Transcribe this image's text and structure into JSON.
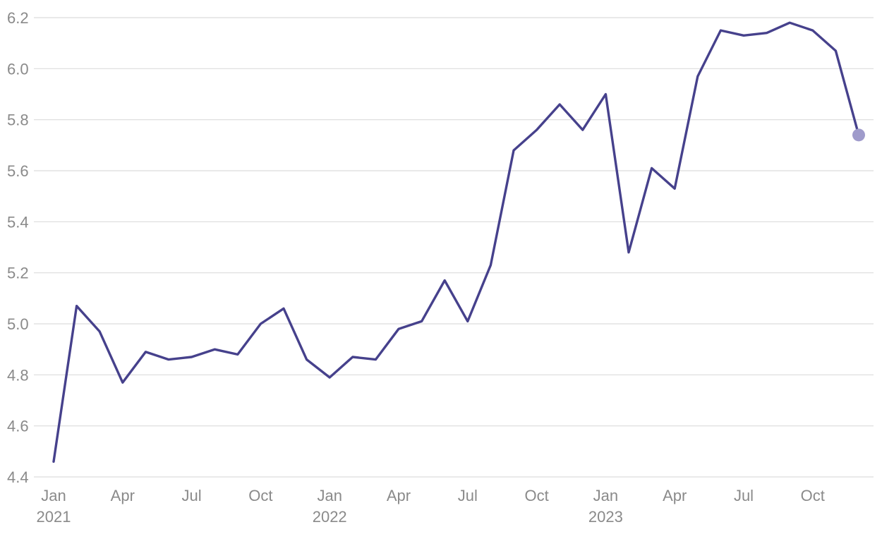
{
  "chart_data": {
    "type": "line",
    "title": "",
    "xlabel": "",
    "ylabel": "",
    "ylim": [
      4.4,
      6.2
    ],
    "y_ticks": [
      "4.4",
      "4.6",
      "4.8",
      "5.0",
      "5.2",
      "5.4",
      "5.6",
      "5.8",
      "6.0",
      "6.2"
    ],
    "grid": "horizontal",
    "x_ticks": [
      {
        "month": "2021-01",
        "label": "Jan",
        "year": "2021"
      },
      {
        "month": "2021-04",
        "label": "Apr",
        "year": ""
      },
      {
        "month": "2021-07",
        "label": "Jul",
        "year": ""
      },
      {
        "month": "2021-10",
        "label": "Oct",
        "year": ""
      },
      {
        "month": "2022-01",
        "label": "Jan",
        "year": "2022"
      },
      {
        "month": "2022-04",
        "label": "Apr",
        "year": ""
      },
      {
        "month": "2022-07",
        "label": "Jul",
        "year": ""
      },
      {
        "month": "2022-10",
        "label": "Oct",
        "year": ""
      },
      {
        "month": "2023-01",
        "label": "Jan",
        "year": "2023"
      },
      {
        "month": "2023-04",
        "label": "Apr",
        "year": ""
      },
      {
        "month": "2023-07",
        "label": "Jul",
        "year": ""
      },
      {
        "month": "2023-10",
        "label": "Oct",
        "year": ""
      }
    ],
    "x": [
      "2021-01",
      "2021-02",
      "2021-03",
      "2021-04",
      "2021-05",
      "2021-06",
      "2021-07",
      "2021-08",
      "2021-09",
      "2021-10",
      "2021-11",
      "2021-12",
      "2022-01",
      "2022-02",
      "2022-03",
      "2022-04",
      "2022-05",
      "2022-06",
      "2022-07",
      "2022-08",
      "2022-09",
      "2022-10",
      "2022-11",
      "2022-12",
      "2023-01",
      "2023-02",
      "2023-03",
      "2023-04",
      "2023-05",
      "2023-06",
      "2023-07",
      "2023-08",
      "2023-09",
      "2023-10",
      "2023-11",
      "2023-12"
    ],
    "series": [
      {
        "color": "#46418c",
        "end_marker_color": "#9f9bcb",
        "values": [
          4.46,
          5.07,
          4.97,
          4.77,
          4.89,
          4.86,
          4.87,
          4.9,
          4.88,
          5.0,
          5.06,
          4.86,
          4.79,
          4.87,
          4.86,
          4.98,
          5.01,
          5.17,
          5.01,
          5.23,
          5.68,
          5.76,
          5.86,
          5.76,
          5.9,
          5.28,
          5.61,
          5.53,
          5.97,
          6.15,
          6.13,
          6.14,
          6.18,
          6.15,
          6.07,
          5.74
        ]
      }
    ]
  }
}
